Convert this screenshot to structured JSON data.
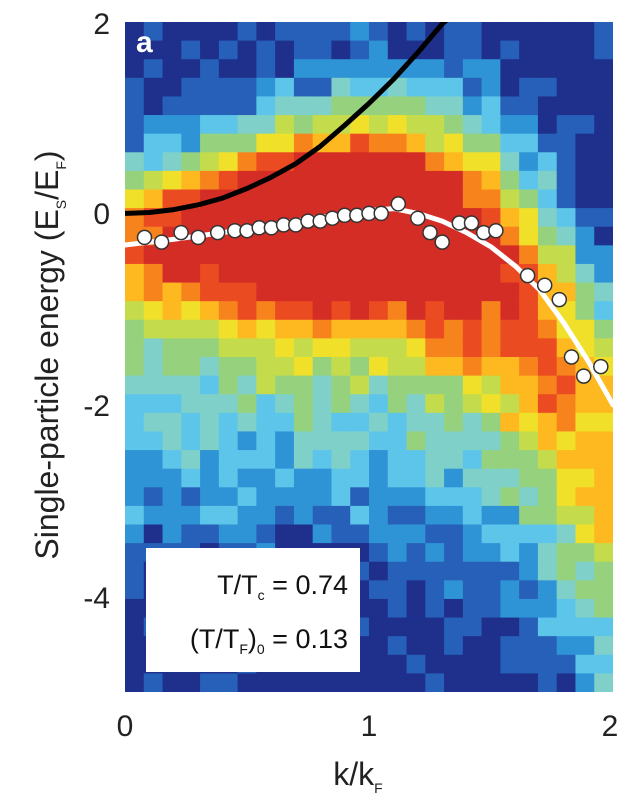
{
  "chart_data": {
    "type": "heatmap",
    "panel_label": "a",
    "xlabel": "k/k",
    "xlabel_sub": "F",
    "ylabel": "Single-particle energy (E",
    "ylabel_sub1": "S",
    "ylabel_mid": "/E",
    "ylabel_sub2": "F",
    "ylabel_end": ")",
    "xlim": [
      0,
      2
    ],
    "ylim": [
      -5,
      2
    ],
    "x_ticks": [
      "0",
      "1",
      "2"
    ],
    "y_ticks": [
      "2",
      "0",
      "-2",
      "-4"
    ],
    "annotations": {
      "line1_a": "T/T",
      "line1_sub": "c",
      "line1_b": " = 0.74",
      "line2_a": "(T/T",
      "line2_sub": "F",
      "line2_b": ")",
      "line2_sub2": "0",
      "line2_c": " = 0.13"
    },
    "data_points": {
      "k": [
        0.08,
        0.15,
        0.23,
        0.3,
        0.38,
        0.45,
        0.5,
        0.55,
        0.6,
        0.65,
        0.7,
        0.75,
        0.8,
        0.85,
        0.9,
        0.95,
        1.0,
        1.05,
        1.12,
        1.2,
        1.25,
        1.3,
        1.37,
        1.42,
        1.47,
        1.52,
        1.65,
        1.72,
        1.78,
        1.83,
        1.88,
        1.95
      ],
      "energy": [
        -0.25,
        -0.3,
        -0.2,
        -0.25,
        -0.2,
        -0.18,
        -0.18,
        -0.15,
        -0.15,
        -0.12,
        -0.12,
        -0.08,
        -0.08,
        -0.05,
        -0.02,
        -0.02,
        0.0,
        0.0,
        0.1,
        -0.05,
        -0.2,
        -0.3,
        -0.1,
        -0.1,
        -0.2,
        -0.18,
        -0.65,
        -0.75,
        -0.9,
        -1.5,
        -1.7,
        -1.6
      ]
    },
    "fit_curves": [
      {
        "color": "#000000",
        "x": [
          0,
          0.1,
          0.2,
          0.3,
          0.4,
          0.5,
          0.6,
          0.7,
          0.8,
          0.9,
          1.0,
          1.1,
          1.2,
          1.3,
          1.4
        ],
        "y": [
          0.0,
          0.01,
          0.04,
          0.09,
          0.16,
          0.26,
          0.38,
          0.52,
          0.7,
          0.92,
          1.15,
          1.4,
          1.68,
          1.98,
          2.2
        ]
      },
      {
        "color": "#ffffff",
        "x": [
          0,
          0.2,
          0.4,
          0.6,
          0.8,
          1.0,
          1.1,
          1.2,
          1.3,
          1.4,
          1.5,
          1.6,
          1.7,
          1.8,
          1.9,
          2.0
        ],
        "y": [
          -0.33,
          -0.27,
          -0.2,
          -0.12,
          -0.04,
          0.03,
          0.05,
          0.0,
          -0.08,
          -0.2,
          -0.35,
          -0.55,
          -0.8,
          -1.15,
          -1.55,
          -2.0
        ]
      }
    ],
    "colormap": [
      "#1e2f8c",
      "#2760b8",
      "#2f94d6",
      "#5ec5ea",
      "#7fd0c8",
      "#96d27e",
      "#c4dc4c",
      "#f0e02a",
      "#fdb91f",
      "#f7831d",
      "#ea4b20",
      "#d42d26"
    ]
  }
}
